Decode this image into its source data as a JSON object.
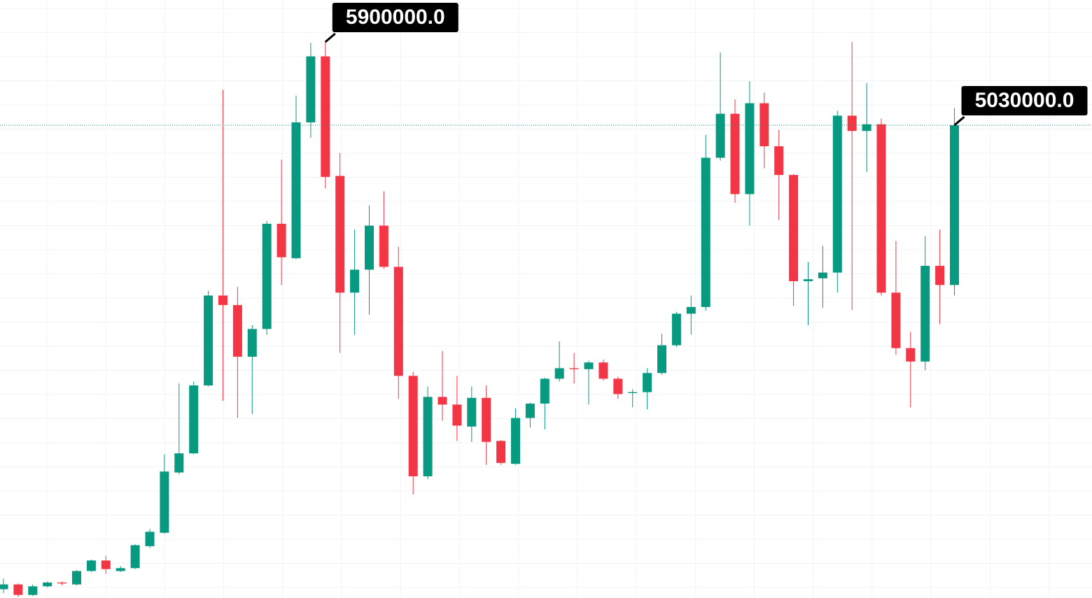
{
  "chart_data": {
    "type": "candlestick",
    "open": [
      180000,
      230000,
      120000,
      210000,
      250000,
      230000,
      370000,
      480000,
      370000,
      400000,
      630000,
      770000,
      1400000,
      1600000,
      2310000,
      3250000,
      3150000,
      2610000,
      2900000,
      4000000,
      3640000,
      5060000,
      5750000,
      4500000,
      3280000,
      3520000,
      3980000,
      3550000,
      2410000,
      1360000,
      2190000,
      2110000,
      1880000,
      2180000,
      1730000,
      1490000,
      1970000,
      2120000,
      2380000,
      2490000,
      2480000,
      2550000,
      2380000,
      2230000,
      2240000,
      2440000,
      2730000,
      3060000,
      3130000,
      4690000,
      5150000,
      4310000,
      5260000,
      4810000,
      4510000,
      3400000,
      3430000,
      3490000,
      5130000,
      4970000,
      5040000,
      3280000,
      2700000,
      2560000,
      3560000,
      3360000
    ],
    "high": [
      290000,
      240000,
      230000,
      260000,
      260000,
      380000,
      490000,
      530000,
      420000,
      650000,
      810000,
      1590000,
      2330000,
      2350000,
      3300000,
      5400000,
      3340000,
      2940000,
      4030000,
      4670000,
      5340000,
      5890000,
      5900000,
      4740000,
      3940000,
      4190000,
      4340000,
      3760000,
      2450000,
      2300000,
      2670000,
      2410000,
      2300000,
      2310000,
      1740000,
      2070000,
      2130000,
      2390000,
      2770000,
      2650000,
      2570000,
      2580000,
      2400000,
      2270000,
      2490000,
      2850000,
      3080000,
      3250000,
      4930000,
      5790000,
      5300000,
      5490000,
      5370000,
      4980000,
      4520000,
      3600000,
      3770000,
      5180000,
      5900000,
      5470000,
      5100000,
      3820000,
      2870000,
      3870000,
      3940000,
      5210000
    ],
    "low": [
      140000,
      100000,
      110000,
      200000,
      220000,
      220000,
      360000,
      340000,
      360000,
      390000,
      610000,
      760000,
      1380000,
      1590000,
      2300000,
      2150000,
      1970000,
      2010000,
      2840000,
      3360000,
      3630000,
      4900000,
      4370000,
      2650000,
      2840000,
      3050000,
      3530000,
      2170000,
      1170000,
      1330000,
      1940000,
      1730000,
      1720000,
      1480000,
      1480000,
      1480000,
      1870000,
      1850000,
      2350000,
      2330000,
      2110000,
      2360000,
      2170000,
      2080000,
      2060000,
      2420000,
      2710000,
      2840000,
      3090000,
      4660000,
      4220000,
      3980000,
      4580000,
      4040000,
      3140000,
      2940000,
      3120000,
      3280000,
      3100000,
      4540000,
      3250000,
      2630000,
      2080000,
      2470000,
      2950000,
      3250000
    ],
    "close": [
      230000,
      120000,
      210000,
      250000,
      240000,
      370000,
      480000,
      390000,
      400000,
      640000,
      780000,
      1410000,
      1600000,
      2310000,
      3250000,
      3150000,
      2610000,
      2900000,
      4000000,
      3650000,
      5060000,
      5750000,
      4490000,
      3280000,
      3520000,
      3980000,
      3550000,
      2410000,
      1360000,
      2190000,
      2110000,
      1890000,
      2180000,
      1720000,
      1500000,
      1970000,
      2120000,
      2380000,
      2490000,
      2480000,
      2550000,
      2380000,
      2220000,
      2240000,
      2440000,
      2730000,
      3060000,
      3130000,
      4690000,
      5150000,
      4310000,
      5260000,
      4810000,
      4510000,
      3400000,
      3420000,
      3490000,
      5130000,
      4970000,
      5040000,
      3280000,
      2700000,
      2560000,
      3560000,
      3360000,
      5030000
    ],
    "up_color": "#089981",
    "down_color": "#f23645",
    "ylim": [
      88000,
      6339000
    ],
    "grid": true,
    "annotations": [
      {
        "value": 5900000,
        "label": "5900000.0"
      },
      {
        "value": 5030000,
        "label": "5030000.0"
      }
    ]
  }
}
